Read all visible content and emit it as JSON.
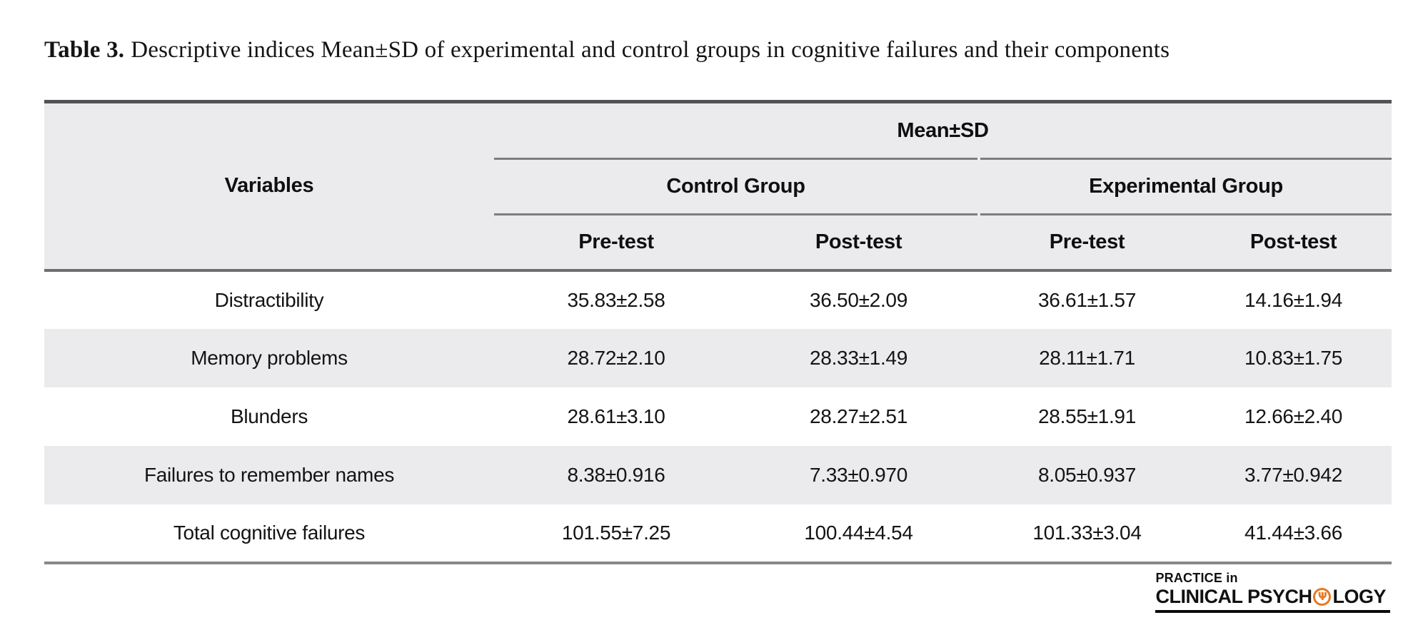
{
  "caption": {
    "label": "Table 3.",
    "text": "Descriptive indices Mean±SD of experimental and control groups in cognitive failures and their components"
  },
  "table": {
    "variables_header": "Variables",
    "mean_sd_header": "Mean±SD",
    "group_headers": [
      "Control Group",
      "Experimental Group"
    ],
    "subheaders": [
      "Pre-test",
      "Post-test",
      "Pre-test",
      "Post-test"
    ],
    "rows": [
      {
        "variable": "Distractibility",
        "values": [
          "35.83±2.58",
          "36.50±2.09",
          "36.61±1.57",
          "14.16±1.94"
        ]
      },
      {
        "variable": "Memory problems",
        "values": [
          "28.72±2.10",
          "28.33±1.49",
          "28.11±1.71",
          "10.83±1.75"
        ]
      },
      {
        "variable": "Blunders",
        "values": [
          "28.61±3.10",
          "28.27±2.51",
          "28.55±1.91",
          "12.66±2.40"
        ]
      },
      {
        "variable": "Failures to remember names",
        "values": [
          "8.38±0.916",
          "7.33±0.970",
          "8.05±0.937",
          "3.77±0.942"
        ]
      },
      {
        "variable": "Total cognitive failures",
        "values": [
          "101.55±7.25",
          "100.44±4.54",
          "101.33±3.04",
          "41.44±3.66"
        ]
      }
    ]
  },
  "logo": {
    "line1": "PRACTICE in",
    "line2_pre": "CLINICAL PSYCH",
    "line2_post": "LOGY",
    "psi_glyph": "Ψ"
  },
  "colors": {
    "header_bg": "#ebebed",
    "stripe_bg": "#ebebed",
    "rule_top": "#525256",
    "rule_mid": "#7d7d80",
    "rule_header_bottom": "#6e6e71",
    "rule_table_bottom": "#88888b",
    "logo_orange": "#e87722",
    "text": "#141414"
  }
}
